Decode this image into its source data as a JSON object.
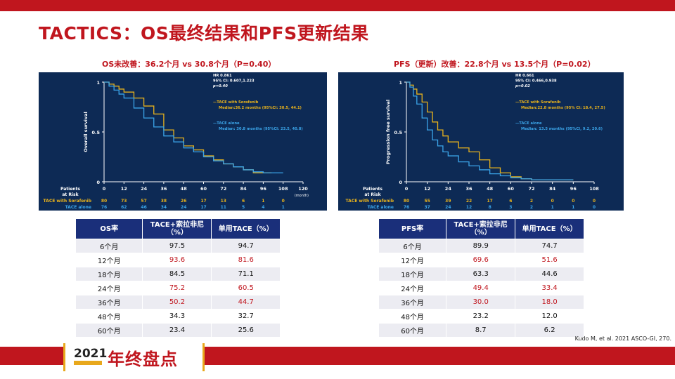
{
  "slide": {
    "title": "TACTICS：OS最终结果和PFS更新结果",
    "citation": "Kudo M, et al. 2021 ASCO-GI, 270.",
    "badge_year": "2021",
    "badge_label": "年终盘点",
    "colors": {
      "accent": "#c0161e",
      "panel": "#0d2a55",
      "header": "#1a2f7a",
      "series_a": "#e8b21c",
      "series_b": "#3ba4e8"
    }
  },
  "chart_data": [
    {
      "type": "line",
      "subtitle": "OS未改善：36.2个月 vs 30.8个月（P=0.40）",
      "ylabel": "Overall survival",
      "xlabel": "(month)",
      "ylim": [
        0,
        1
      ],
      "yticks": [
        "1",
        "0.5",
        "0"
      ],
      "xticks": [
        0,
        12,
        24,
        36,
        48,
        60,
        72,
        84,
        96,
        108,
        120
      ],
      "xlim": [
        0,
        120
      ],
      "stats": [
        "HR 0.861",
        "95% CI: 0.607,1.223",
        "p=0.40"
      ],
      "series": [
        {
          "name": "TACE with Sorafenib",
          "desc": "Median:36.2 months (95%CI: 30.5, 44.1)",
          "x": [
            0,
            3,
            6,
            9,
            12,
            18,
            24,
            30,
            36,
            42,
            48,
            54,
            60,
            66,
            72,
            78,
            84,
            90,
            96,
            101
          ],
          "y": [
            1,
            0.98,
            0.96,
            0.93,
            0.9,
            0.84,
            0.76,
            0.68,
            0.52,
            0.44,
            0.36,
            0.32,
            0.26,
            0.22,
            0.18,
            0.15,
            0.12,
            0.09,
            0.09,
            0.09
          ]
        },
        {
          "name": "TACE alone",
          "desc": "Median: 30.8 months (95%CI: 23.5, 40.8)",
          "x": [
            0,
            3,
            6,
            9,
            12,
            18,
            24,
            30,
            36,
            42,
            48,
            54,
            60,
            66,
            72,
            78,
            84,
            90,
            96,
            108
          ],
          "y": [
            1,
            0.96,
            0.92,
            0.88,
            0.84,
            0.74,
            0.64,
            0.55,
            0.46,
            0.4,
            0.34,
            0.3,
            0.25,
            0.21,
            0.18,
            0.15,
            0.12,
            0.1,
            0.09,
            0.09
          ]
        }
      ],
      "risk": {
        "label_line1": "Patients",
        "label_line2": "at Risk",
        "rows": [
          {
            "name": "TACE with Sorafenib",
            "values": [
              "80",
              "73",
              "57",
              "38",
              "26",
              "17",
              "13",
              "6",
              "1",
              "0"
            ]
          },
          {
            "name": "TACE alone",
            "values": [
              "76",
              "62",
              "46",
              "34",
              "24",
              "17",
              "11",
              "5",
              "4",
              "1"
            ]
          }
        ]
      }
    },
    {
      "type": "line",
      "subtitle": "PFS（更新）改善：22.8个月 vs 13.5个月（P=0.02）",
      "ylabel": "Progression free survival",
      "xlabel": "",
      "ylim": [
        0,
        1
      ],
      "yticks": [
        "1",
        "0.5",
        "0"
      ],
      "xticks": [
        0,
        12,
        24,
        36,
        48,
        60,
        72,
        84,
        96,
        108
      ],
      "xlim": [
        0,
        108
      ],
      "stats": [
        "HR 0.661",
        "95% CI: 0.466,0.938",
        "p=0.02"
      ],
      "series": [
        {
          "name": "TACE with Sorafenib",
          "desc": "Median:22.8 months (95% CI: 18.4, 27.5)",
          "x": [
            0,
            2,
            4,
            6,
            9,
            12,
            15,
            18,
            21,
            24,
            30,
            36,
            42,
            48,
            54,
            60,
            66,
            72,
            84,
            96
          ],
          "y": [
            1,
            0.97,
            0.93,
            0.88,
            0.8,
            0.7,
            0.6,
            0.52,
            0.46,
            0.4,
            0.34,
            0.3,
            0.22,
            0.14,
            0.09,
            0.05,
            0.03,
            0.02,
            0.02,
            0.02
          ]
        },
        {
          "name": "TACE alone",
          "desc": "Median: 13.5 months (95%CI, 9.2, 20.6)",
          "x": [
            0,
            2,
            4,
            6,
            9,
            12,
            15,
            18,
            21,
            24,
            30,
            36,
            42,
            48,
            54,
            60,
            66,
            72,
            84,
            96
          ],
          "y": [
            1,
            0.95,
            0.86,
            0.78,
            0.64,
            0.52,
            0.42,
            0.36,
            0.3,
            0.26,
            0.2,
            0.16,
            0.12,
            0.08,
            0.06,
            0.04,
            0.03,
            0.02,
            0.02,
            0.02
          ]
        }
      ],
      "risk": {
        "label_line1": "Patients",
        "label_line2": "at Risk",
        "rows": [
          {
            "name": "TACE with Sorafenib",
            "values": [
              "80",
              "55",
              "39",
              "22",
              "17",
              "6",
              "2",
              "0",
              "0",
              "0"
            ]
          },
          {
            "name": "TACE alone",
            "values": [
              "76",
              "37",
              "24",
              "12",
              "8",
              "3",
              "2",
              "1",
              "1",
              "0"
            ]
          }
        ]
      }
    }
  ],
  "tables": {
    "os": {
      "headers": [
        "OS率",
        "TACE+索拉非尼（%）",
        "单用TACE（%）"
      ],
      "rows": [
        {
          "label": "6个月",
          "a": "97.5",
          "b": "94.7",
          "red": false
        },
        {
          "label": "12个月",
          "a": "93.6",
          "b": "81.6",
          "red": true
        },
        {
          "label": "18个月",
          "a": "84.5",
          "b": "71.1",
          "red": false
        },
        {
          "label": "24个月",
          "a": "75.2",
          "b": "60.5",
          "red": true
        },
        {
          "label": "36个月",
          "a": "50.2",
          "b": "44.7",
          "red": true
        },
        {
          "label": "48个月",
          "a": "34.3",
          "b": "32.7",
          "red": false
        },
        {
          "label": "60个月",
          "a": "23.4",
          "b": "25.6",
          "red": false
        }
      ]
    },
    "pfs": {
      "headers": [
        "PFS率",
        "TACE+索拉非尼（%）",
        "单用TACE（%）"
      ],
      "rows": [
        {
          "label": "6个月",
          "a": "89.9",
          "b": "74.7",
          "red": false
        },
        {
          "label": "12个月",
          "a": "69.6",
          "b": "51.6",
          "red": true
        },
        {
          "label": "18个月",
          "a": "63.3",
          "b": "44.6",
          "red": false
        },
        {
          "label": "24个月",
          "a": "49.4",
          "b": "33.4",
          "red": true
        },
        {
          "label": "36个月",
          "a": "30.0",
          "b": "18.0",
          "red": true
        },
        {
          "label": "48个月",
          "a": "23.2",
          "b": "12.0",
          "red": false
        },
        {
          "label": "60个月",
          "a": "8.7",
          "b": "6.2",
          "red": false
        }
      ]
    }
  }
}
